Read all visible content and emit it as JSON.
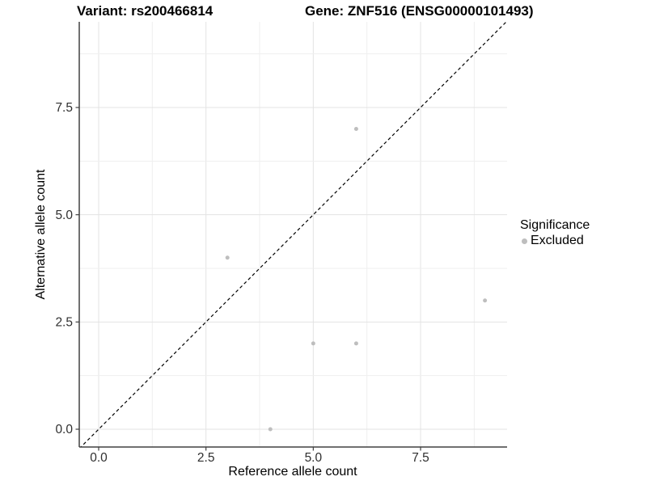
{
  "header": {
    "variant_title": "Variant: rs200466814",
    "gene_title": "Gene: ZNF516 (ENSG00000101493)"
  },
  "chart_data": {
    "type": "scatter",
    "title_left": "Variant: rs200466814",
    "title_right": "Gene: ZNF516 (ENSG00000101493)",
    "xlabel": "Reference allele count",
    "ylabel": "Alternative allele count",
    "x_ticks": [
      0.0,
      2.5,
      5.0,
      7.5
    ],
    "y_ticks": [
      0.0,
      2.5,
      5.0,
      7.5
    ],
    "tick_decimals": 1,
    "minor_step": 1.25,
    "grid": true,
    "xlim": [
      -0.45,
      9.52
    ],
    "ylim": [
      -0.42,
      9.5
    ],
    "series": [
      {
        "name": "Excluded",
        "color": "#bebebe",
        "points": [
          [
            6,
            7
          ],
          [
            3,
            4
          ],
          [
            9,
            3
          ],
          [
            5,
            2
          ],
          [
            6,
            2
          ],
          [
            4,
            0
          ]
        ]
      }
    ],
    "reference_line": {
      "equation": "y = x",
      "style": "dashed",
      "color": "#000000"
    },
    "legend": {
      "title": "Significance",
      "position": "right",
      "items": [
        {
          "label": "Excluded",
          "color": "#bebebe"
        }
      ]
    }
  },
  "style_colors": {
    "background": "#ffffff",
    "axis_line": "#404040",
    "tick_label": "#2f2f2f",
    "grid_major": "#e3e3e3",
    "grid_minor": "#efefef",
    "point": "#bebebe"
  }
}
